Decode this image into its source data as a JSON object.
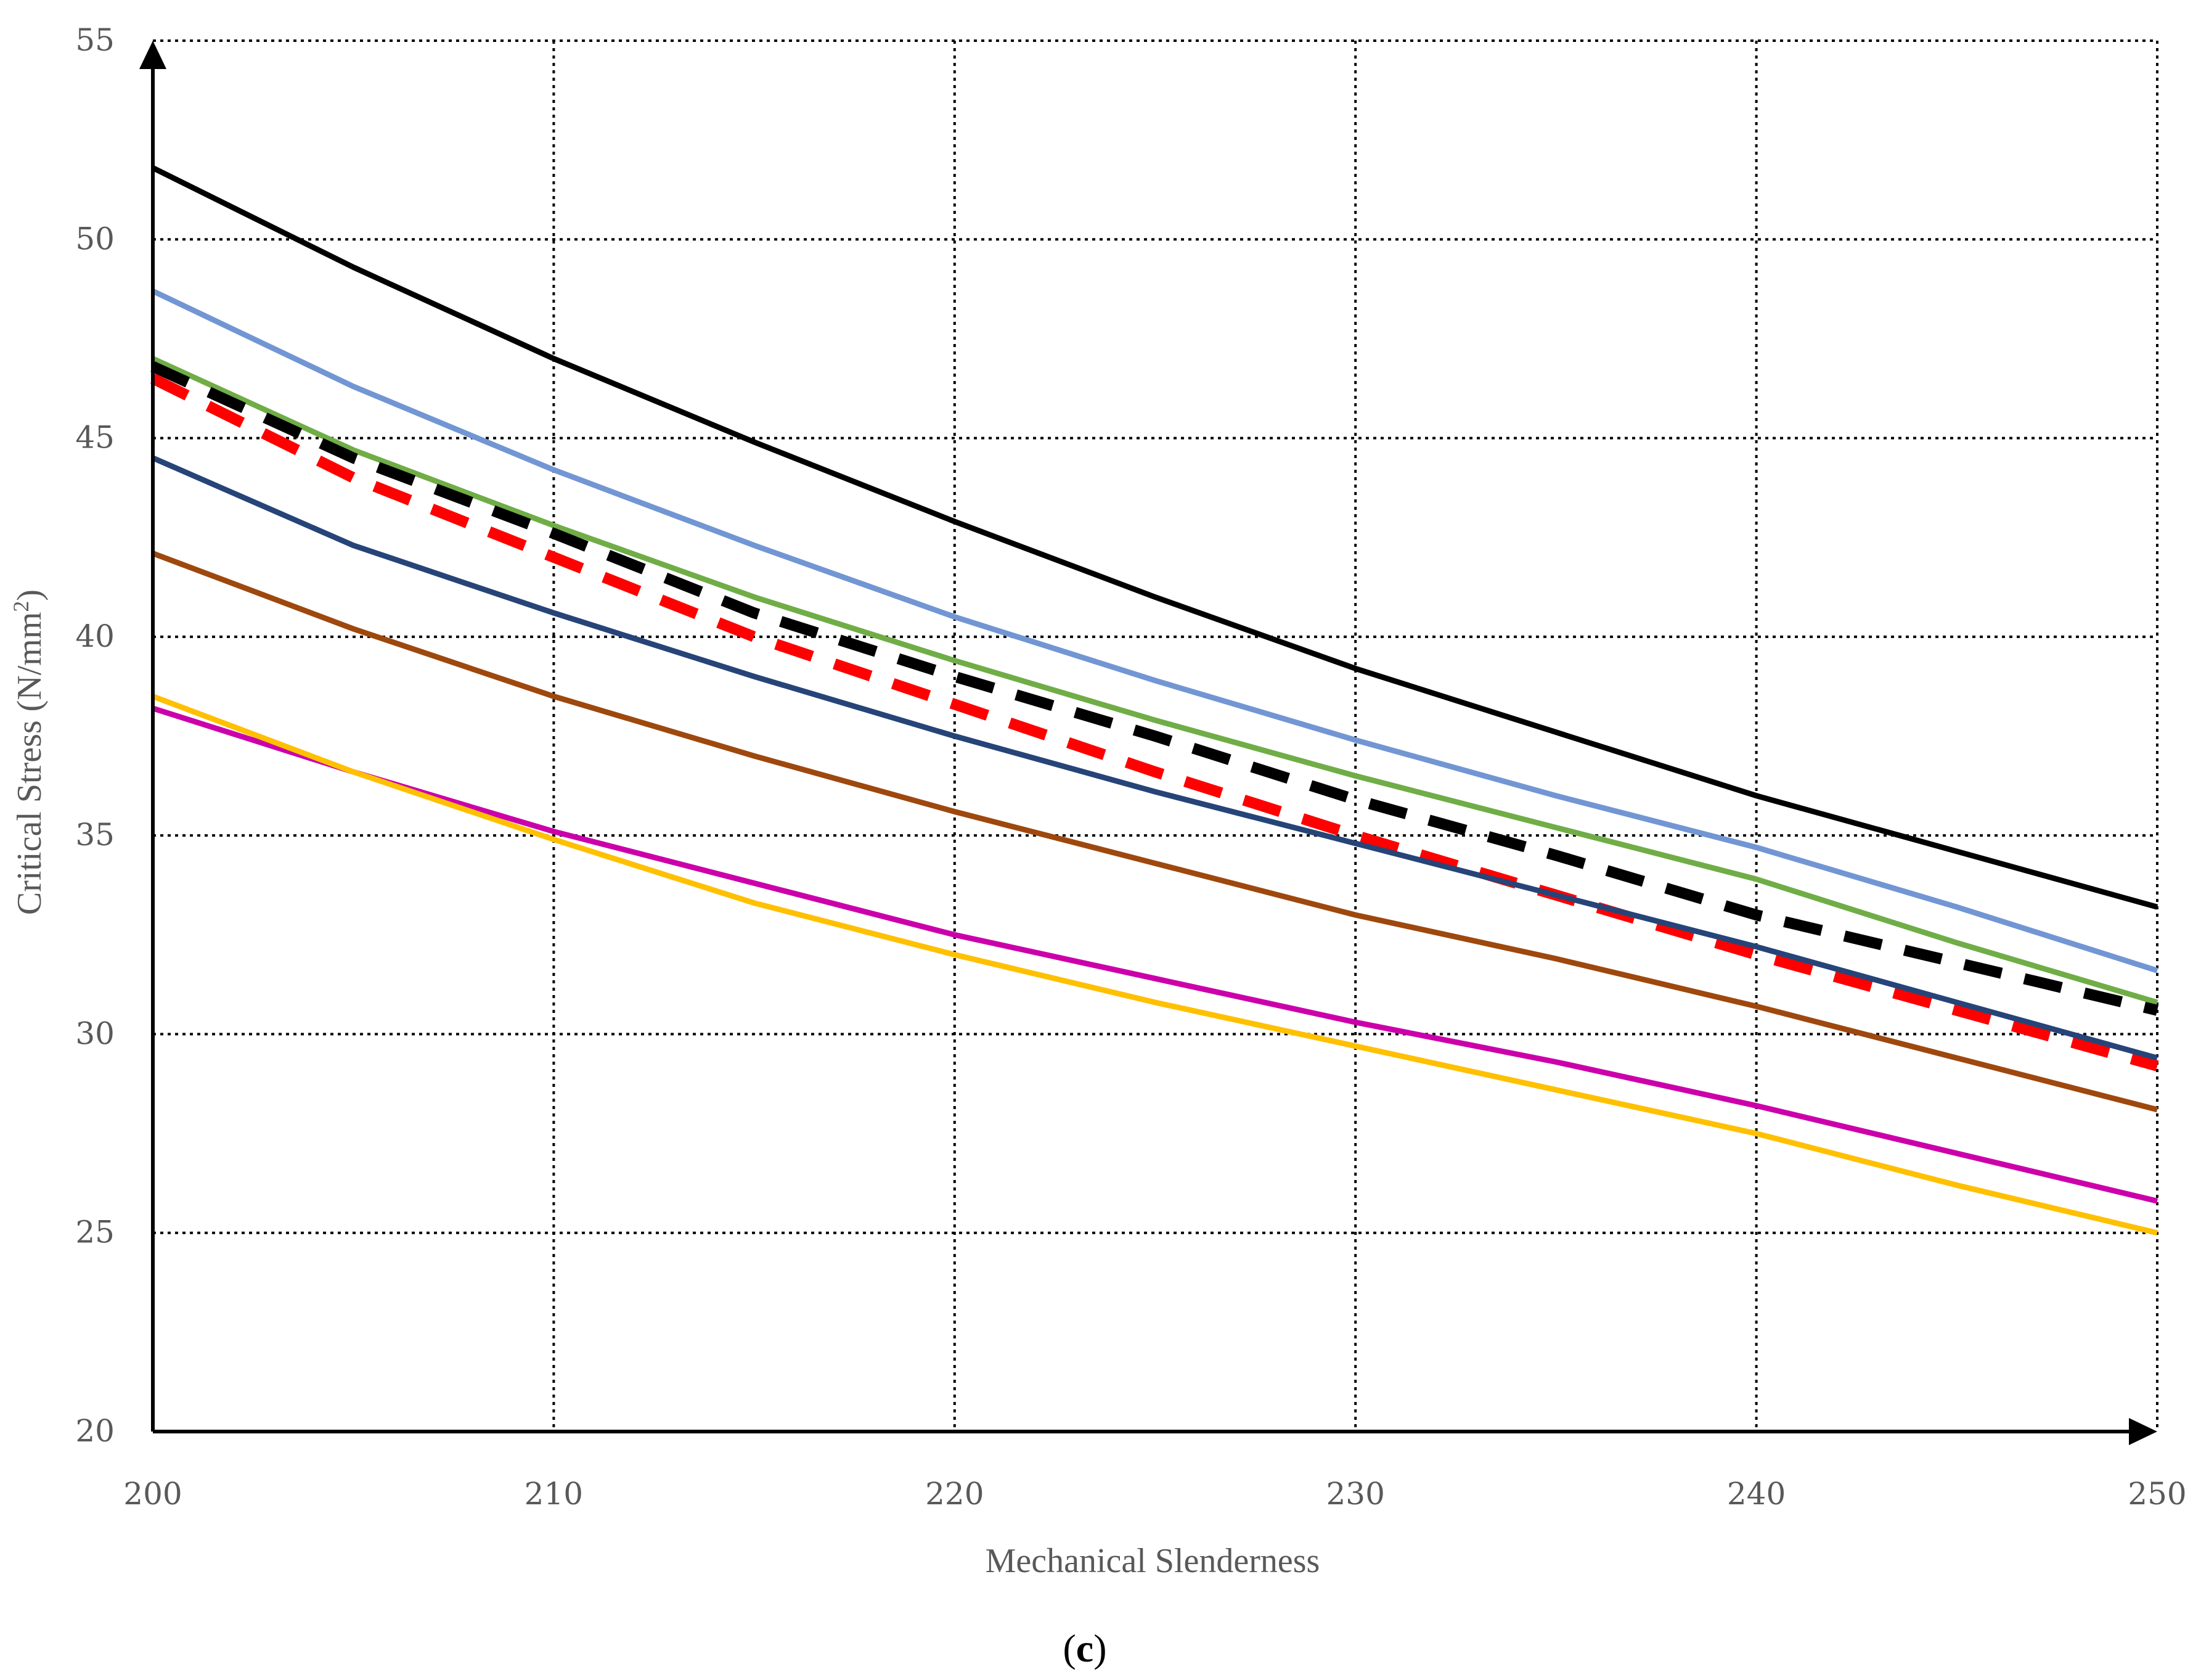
{
  "chart_data": {
    "type": "line",
    "xlabel": "Mechanical Slenderness",
    "ylabel_main": "Critical Stress (N/mm",
    "ylabel_sup": "2",
    "ylabel_close": ")",
    "panel_label_open": "(",
    "panel_label_letter": "c",
    "panel_label_close": ")",
    "xlim": [
      200,
      250
    ],
    "ylim": [
      20,
      55
    ],
    "xticks": [
      200,
      210,
      220,
      230,
      240,
      250
    ],
    "yticks": [
      20,
      25,
      30,
      35,
      40,
      45,
      50,
      55
    ],
    "grid": true,
    "legend": "none",
    "x": [
      200,
      205,
      210,
      215,
      220,
      225,
      230,
      235,
      240,
      245,
      250
    ],
    "series": [
      {
        "color": "#000000",
        "style": "solid",
        "values": [
          51.8,
          49.3,
          47.0,
          44.9,
          42.9,
          41.0,
          39.2,
          37.6,
          36.0,
          34.6,
          33.2
        ]
      },
      {
        "color": "#7296D3",
        "style": "solid",
        "values": [
          48.7,
          46.3,
          44.2,
          42.3,
          40.5,
          38.9,
          37.4,
          36.0,
          34.7,
          33.2,
          31.6
        ]
      },
      {
        "color": "#70AD47",
        "style": "solid",
        "values": [
          47.0,
          44.7,
          42.8,
          41.0,
          39.4,
          37.9,
          36.5,
          35.2,
          33.9,
          32.3,
          30.8
        ]
      },
      {
        "color": "#000000",
        "style": "dashed",
        "values": [
          46.8,
          44.5,
          42.6,
          40.6,
          39.0,
          37.5,
          35.9,
          34.5,
          33.0,
          31.8,
          30.6
        ]
      },
      {
        "color": "#FF0000",
        "style": "dashed",
        "values": [
          46.5,
          44.0,
          42.0,
          40.0,
          38.3,
          36.6,
          35.0,
          33.5,
          32.0,
          30.6,
          29.2
        ]
      },
      {
        "color": "#264478",
        "style": "solid",
        "values": [
          44.5,
          42.3,
          40.6,
          39.0,
          37.5,
          36.1,
          34.8,
          33.5,
          32.2,
          30.8,
          29.4
        ]
      },
      {
        "color": "#9E480E",
        "style": "solid",
        "values": [
          42.1,
          40.2,
          38.5,
          37.0,
          35.6,
          34.3,
          33.0,
          31.9,
          30.7,
          29.4,
          28.1
        ]
      },
      {
        "color": "#CC00AA",
        "style": "solid",
        "values": [
          38.2,
          36.6,
          35.1,
          33.8,
          32.5,
          31.4,
          30.3,
          29.3,
          28.2,
          27.0,
          25.8
        ]
      },
      {
        "color": "#FFC000",
        "style": "solid",
        "values": [
          38.5,
          36.6,
          34.9,
          33.3,
          32.0,
          30.8,
          29.7,
          28.6,
          27.5,
          26.2,
          25.0
        ]
      }
    ]
  }
}
